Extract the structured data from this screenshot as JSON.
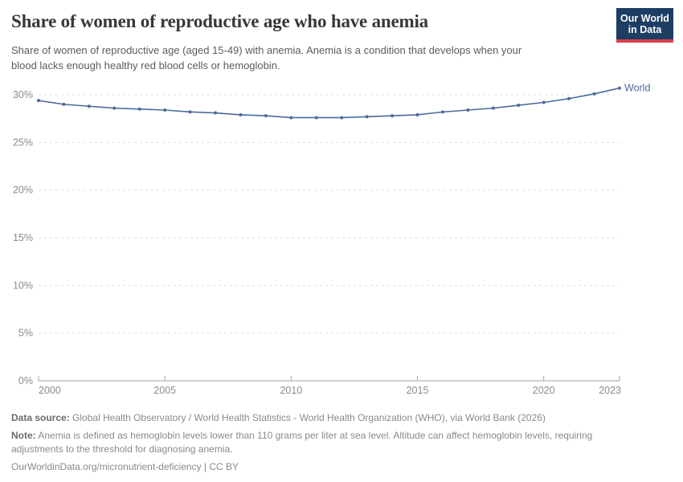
{
  "header": {
    "title": "Share of women of reproductive age who have anemia",
    "subtitle_line1": "Share of women of reproductive age (aged 15-49) with anemia. Anemia is a condition that develops when your",
    "subtitle_line2": "blood lacks enough healthy red blood cells or hemoglobin.",
    "logo": {
      "line1": "Our World",
      "line2": "in Data",
      "bg_color": "#1d3d63",
      "stripe_color": "#d8404a"
    }
  },
  "chart_data": {
    "type": "line",
    "title": "Share of women of reproductive age who have anemia",
    "x": [
      2000,
      2001,
      2002,
      2003,
      2004,
      2005,
      2006,
      2007,
      2008,
      2009,
      2010,
      2011,
      2012,
      2013,
      2014,
      2015,
      2016,
      2017,
      2018,
      2019,
      2020,
      2021,
      2022,
      2023
    ],
    "series": [
      {
        "name": "World",
        "color": "#4c6a9c",
        "values": [
          29.4,
          29.0,
          28.8,
          28.6,
          28.5,
          28.4,
          28.2,
          28.1,
          27.9,
          27.8,
          27.6,
          27.6,
          27.6,
          27.7,
          27.8,
          27.9,
          28.2,
          28.4,
          28.6,
          28.9,
          29.2,
          29.6,
          30.1,
          30.7
        ]
      }
    ],
    "xlabel": "",
    "ylabel": "",
    "xlim": [
      2000,
      2023
    ],
    "ylim": [
      0,
      30
    ],
    "xticks": [
      2000,
      2005,
      2010,
      2015,
      2020,
      2023
    ],
    "yticks": [
      0,
      5,
      10,
      15,
      20,
      25,
      30
    ],
    "ytick_suffix": "%",
    "grid": "horizontal-dashed",
    "legend_position": "end-of-line",
    "grid_color": "#dedede",
    "axis_color": "#a3a3a3",
    "tick_label_color": "#8b8b8b"
  },
  "footer": {
    "datasource_label": "Data source:",
    "datasource_text": "Global Health Observatory / World Health Statistics - World Health Organization (WHO), via World Bank (2026)",
    "note_label": "Note:",
    "note_line1": "Anemia is defined as hemoglobin levels lower than 110 grams per liter at sea level. Altitude can affect hemoglobin levels, requiring",
    "note_line2": "adjustments to the threshold for diagnosing anemia.",
    "link": "OurWorldinData.org/micronutrient-deficiency | CC BY"
  }
}
